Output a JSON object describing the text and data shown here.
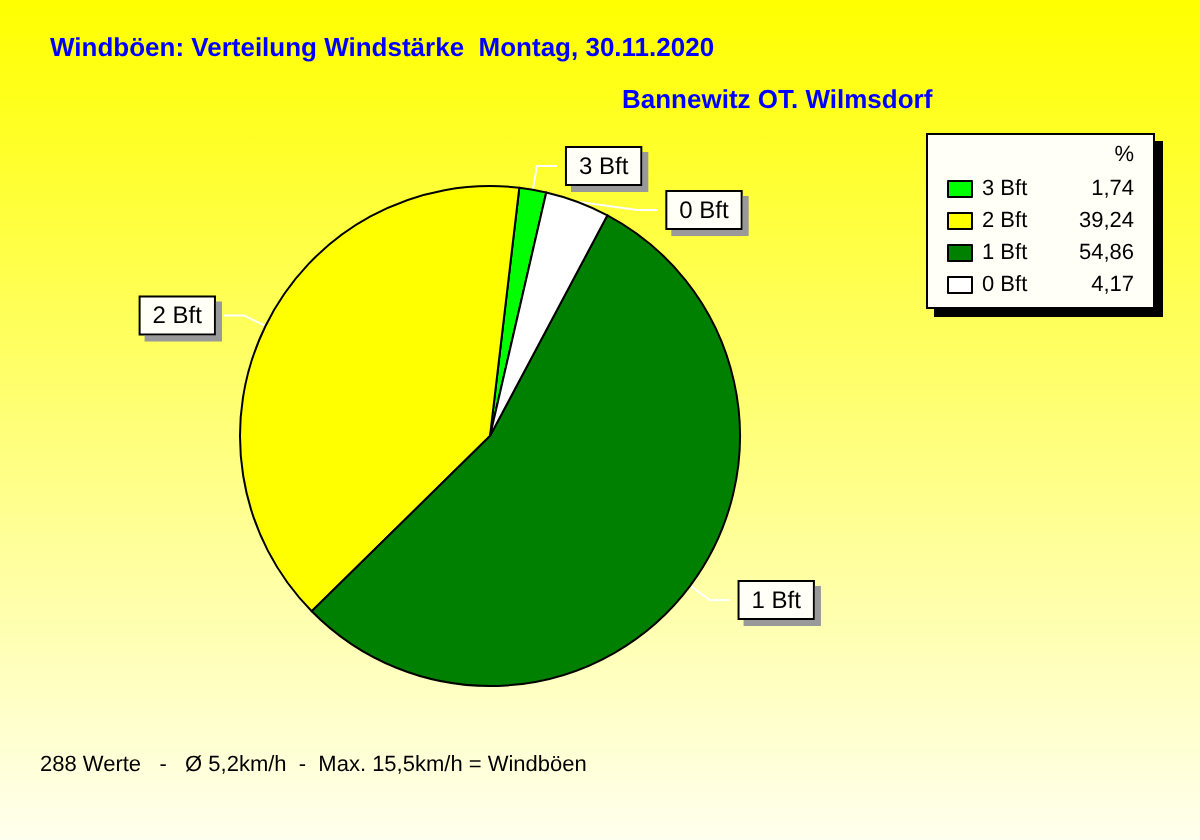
{
  "chart_data": {
    "type": "pie",
    "title": "Windböen: Verteilung Windstärke  Montag, 30.11.2020",
    "subtitle": "Bannewitz OT. Wilmsdorf",
    "legend_title": "%",
    "categories": [
      "3 Bft",
      "2 Bft",
      "1 Bft",
      "0 Bft"
    ],
    "values": [
      1.74,
      39.24,
      54.86,
      4.17
    ],
    "value_labels": [
      "1,74",
      "39,24",
      "54,86",
      "4,17"
    ],
    "colors": [
      "#00ff00",
      "#ffff00",
      "#008000",
      "#ffffff"
    ],
    "legend": "top right",
    "annotations": [
      "288 Werte   -   Ø 5,2km/h  -  Max. 15,5km/h = Windböen"
    ]
  }
}
